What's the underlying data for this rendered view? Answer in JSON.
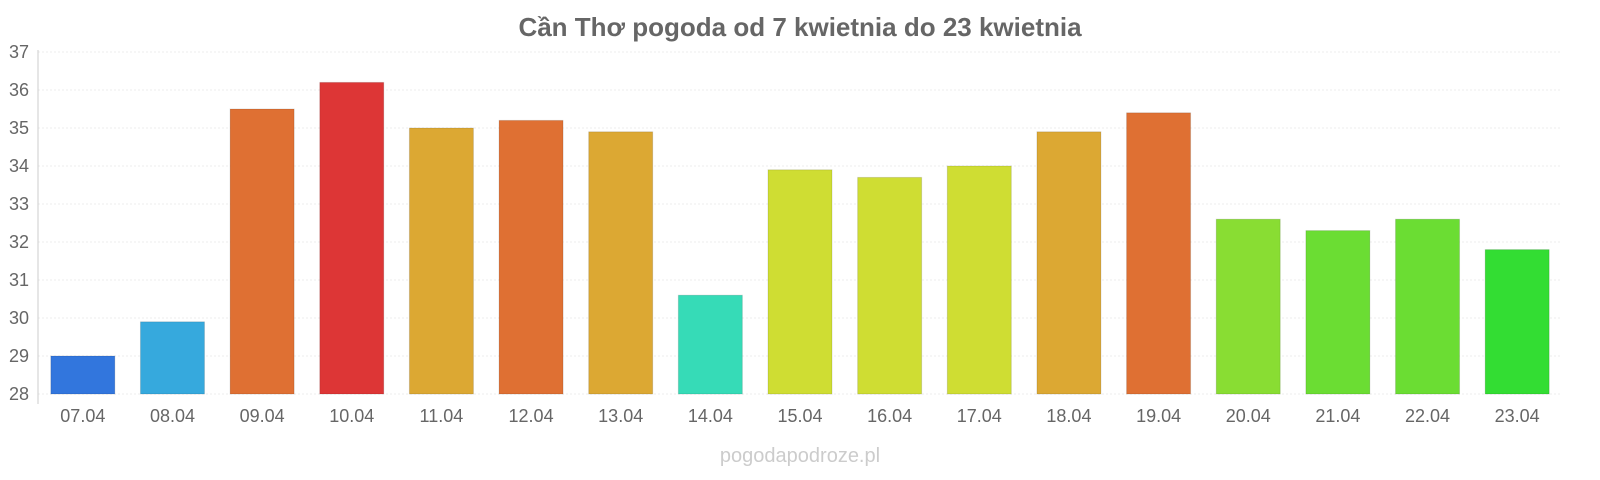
{
  "chart_data": {
    "type": "bar",
    "title": "Cần Thơ pogoda od 7 kwietnia do 23 kwietnia",
    "xlabel": "",
    "ylabel": "",
    "ylim": [
      28,
      37
    ],
    "yticks": [
      28,
      29,
      30,
      31,
      32,
      33,
      34,
      35,
      36,
      37
    ],
    "grid": true,
    "categories": [
      "07.04",
      "08.04",
      "09.04",
      "10.04",
      "11.04",
      "12.04",
      "13.04",
      "14.04",
      "15.04",
      "16.04",
      "17.04",
      "18.04",
      "19.04",
      "20.04",
      "21.04",
      "22.04",
      "23.04"
    ],
    "values": [
      29.0,
      29.9,
      35.5,
      36.2,
      35.0,
      35.2,
      34.9,
      30.6,
      33.9,
      33.7,
      34.0,
      34.9,
      35.4,
      32.6,
      32.3,
      32.6,
      31.8
    ],
    "colors": [
      "#3276dd",
      "#36a9dd",
      "#df7033",
      "#dd3636",
      "#dca833",
      "#df7033",
      "#dca833",
      "#36dbb7",
      "#cfdd33",
      "#cfdd33",
      "#cfdd33",
      "#dca833",
      "#df7033",
      "#89dd33",
      "#6bdd33",
      "#6bdd33",
      "#33dd33"
    ]
  },
  "watermark": "pogodapodroze.pl"
}
